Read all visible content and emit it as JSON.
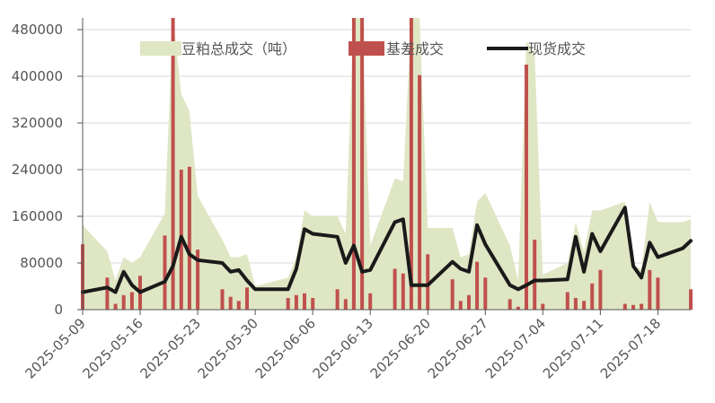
{
  "chart_data": {
    "type": "bar",
    "title": "",
    "xlabel": "",
    "ylabel": "",
    "ylim": [
      0,
      500000
    ],
    "yticks": [
      0,
      80000,
      160000,
      240000,
      320000,
      400000,
      480000
    ],
    "ytick_labels": [
      "0",
      "80000",
      "160000",
      "240000",
      "320000",
      "400000",
      "480000"
    ],
    "xtick_labels": [
      "2025-05-09",
      "2025-05-16",
      "2025-05-23",
      "2025-05-30",
      "2025-06-06",
      "2025-06-13",
      "2025-06-20",
      "2025-06-27",
      "2025-07-04",
      "2025-07-11",
      "2025-07-18"
    ],
    "grid": "horizontal",
    "legend_position": "top",
    "colors": {
      "area": "#dfe6c4",
      "bar": "#c0504d",
      "line": "#1a1a1a"
    },
    "series": [
      {
        "name": "豆粕总成交（吨）",
        "type": "area",
        "x": [
          "2025-05-09",
          "2025-05-12",
          "2025-05-13",
          "2025-05-14",
          "2025-05-15",
          "2025-05-16",
          "2025-05-19",
          "2025-05-20",
          "2025-05-21",
          "2025-05-22",
          "2025-05-23",
          "2025-05-26",
          "2025-05-27",
          "2025-05-28",
          "2025-05-29",
          "2025-05-30",
          "2025-06-03",
          "2025-06-04",
          "2025-06-05",
          "2025-06-06",
          "2025-06-09",
          "2025-06-10",
          "2025-06-11",
          "2025-06-12",
          "2025-06-13",
          "2025-06-16",
          "2025-06-17",
          "2025-06-18",
          "2025-06-19",
          "2025-06-20",
          "2025-06-23",
          "2025-06-24",
          "2025-06-25",
          "2025-06-26",
          "2025-06-27",
          "2025-06-30",
          "2025-07-01",
          "2025-07-02",
          "2025-07-03",
          "2025-07-04",
          "2025-07-07",
          "2025-07-08",
          "2025-07-09",
          "2025-07-10",
          "2025-07-11",
          "2025-07-14",
          "2025-07-15",
          "2025-07-16",
          "2025-07-17",
          "2025-07-18",
          "2025-07-21",
          "2025-07-22"
        ],
        "values": [
          145000,
          100000,
          50000,
          90000,
          80000,
          90000,
          165000,
          560000,
          370000,
          340000,
          195000,
          120000,
          90000,
          90000,
          95000,
          40000,
          55000,
          90000,
          170000,
          160000,
          160000,
          130000,
          550000,
          540000,
          110000,
          225000,
          220000,
          560000,
          560000,
          140000,
          140000,
          90000,
          95000,
          185000,
          200000,
          110000,
          50000,
          460000,
          440000,
          60000,
          80000,
          150000,
          100000,
          170000,
          170000,
          185000,
          75000,
          70000,
          185000,
          150000,
          150000,
          155000
        ]
      },
      {
        "name": "基差成交",
        "type": "bar",
        "x": [
          "2025-05-09",
          "2025-05-12",
          "2025-05-13",
          "2025-05-14",
          "2025-05-15",
          "2025-05-16",
          "2025-05-19",
          "2025-05-20",
          "2025-05-21",
          "2025-05-22",
          "2025-05-23",
          "2025-05-26",
          "2025-05-27",
          "2025-05-28",
          "2025-05-29",
          "2025-05-30",
          "2025-06-03",
          "2025-06-04",
          "2025-06-05",
          "2025-06-06",
          "2025-06-09",
          "2025-06-10",
          "2025-06-11",
          "2025-06-12",
          "2025-06-13",
          "2025-06-16",
          "2025-06-17",
          "2025-06-18",
          "2025-06-19",
          "2025-06-20",
          "2025-06-23",
          "2025-06-24",
          "2025-06-25",
          "2025-06-26",
          "2025-06-27",
          "2025-06-30",
          "2025-07-01",
          "2025-07-02",
          "2025-07-03",
          "2025-07-04",
          "2025-07-07",
          "2025-07-08",
          "2025-07-09",
          "2025-07-10",
          "2025-07-11",
          "2025-07-14",
          "2025-07-15",
          "2025-07-16",
          "2025-07-17",
          "2025-07-18",
          "2025-07-21",
          "2025-07-22"
        ],
        "values": [
          112000,
          55000,
          10000,
          25000,
          30000,
          58000,
          127000,
          520000,
          240000,
          245000,
          103000,
          35000,
          22000,
          15000,
          38000,
          0,
          20000,
          25000,
          28000,
          20000,
          35000,
          18000,
          510000,
          510000,
          28000,
          70000,
          62000,
          510000,
          402000,
          95000,
          52000,
          15000,
          25000,
          82000,
          55000,
          18000,
          5000,
          420000,
          120000,
          10000,
          30000,
          20000,
          15000,
          45000,
          68000,
          10000,
          8000,
          10000,
          68000,
          55000,
          0,
          35000
        ]
      },
      {
        "name": "现货成交",
        "type": "line",
        "x": [
          "2025-05-09",
          "2025-05-12",
          "2025-05-13",
          "2025-05-14",
          "2025-05-15",
          "2025-05-16",
          "2025-05-19",
          "2025-05-20",
          "2025-05-21",
          "2025-05-22",
          "2025-05-23",
          "2025-05-26",
          "2025-05-27",
          "2025-05-28",
          "2025-05-29",
          "2025-05-30",
          "2025-06-03",
          "2025-06-04",
          "2025-06-05",
          "2025-06-06",
          "2025-06-09",
          "2025-06-10",
          "2025-06-11",
          "2025-06-12",
          "2025-06-13",
          "2025-06-16",
          "2025-06-17",
          "2025-06-18",
          "2025-06-19",
          "2025-06-20",
          "2025-06-23",
          "2025-06-24",
          "2025-06-25",
          "2025-06-26",
          "2025-06-27",
          "2025-06-30",
          "2025-07-01",
          "2025-07-02",
          "2025-07-03",
          "2025-07-04",
          "2025-07-07",
          "2025-07-08",
          "2025-07-09",
          "2025-07-10",
          "2025-07-11",
          "2025-07-14",
          "2025-07-15",
          "2025-07-16",
          "2025-07-17",
          "2025-07-18",
          "2025-07-21",
          "2025-07-22"
        ],
        "values": [
          30000,
          38000,
          30000,
          65000,
          42000,
          30000,
          48000,
          75000,
          125000,
          95000,
          85000,
          80000,
          65000,
          68000,
          50000,
          35000,
          35000,
          70000,
          138000,
          130000,
          125000,
          80000,
          110000,
          65000,
          68000,
          150000,
          155000,
          42000,
          42000,
          42000,
          82000,
          70000,
          65000,
          145000,
          112000,
          42000,
          35000,
          42000,
          50000,
          50000,
          52000,
          125000,
          65000,
          130000,
          100000,
          175000,
          75000,
          55000,
          115000,
          90000,
          105000,
          118000
        ]
      }
    ]
  }
}
